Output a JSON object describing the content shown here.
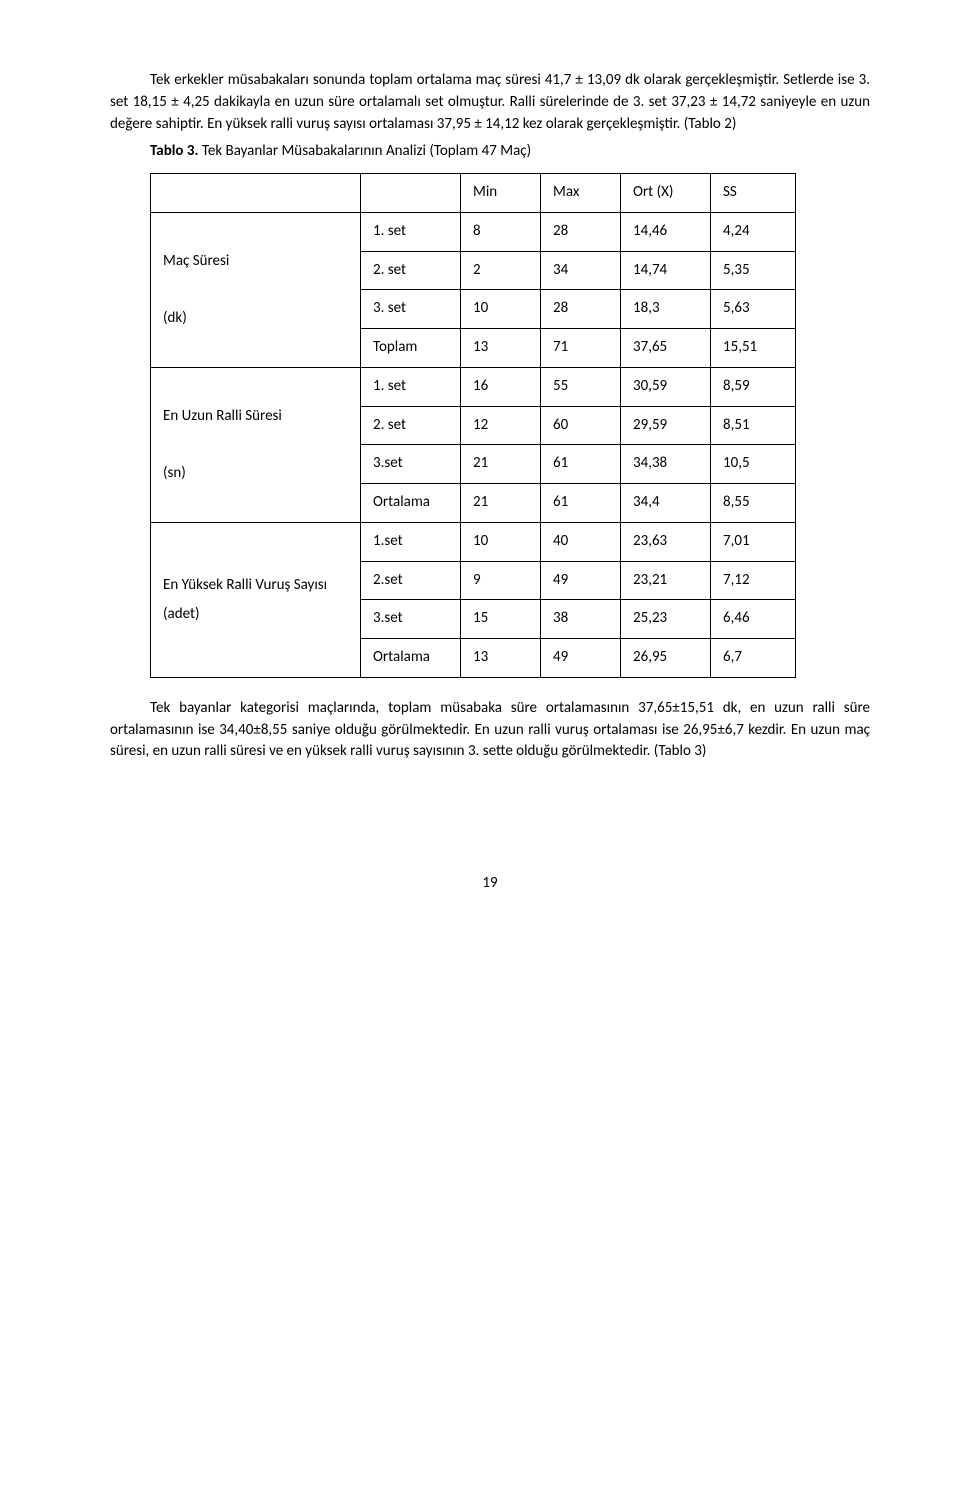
{
  "para1": "Tek erkekler müsabakaları sonunda toplam ortalama maç süresi 41,7 ± 13,09 dk olarak gerçekleşmiştir. Setlerde ise 3. set 18,15 ± 4,25 dakikayla en uzun süre ortalamalı set olmuştur. Ralli sürelerinde de 3. set   37,23 ± 14,72 saniyeyle en uzun değere sahiptir. En yüksek  ralli vuruş sayısı ortalaması 37,95 ± 14,12 kez olarak gerçekleşmiştir. (Tablo 2)",
  "caption_bold": "Tablo 3.",
  "caption_rest": " Tek Bayanlar Müsabakalarının Analizi (Toplam 47 Maç)",
  "headers": {
    "h1": "Min",
    "h2": "Max",
    "h3": "Ort (X)",
    "h4": "SS"
  },
  "groups": [
    {
      "label": "Maç Süresi\n(dk)",
      "rows": [
        {
          "c1": "1. set",
          "c2": "8",
          "c3": "28",
          "c4": "14,46",
          "c5": "4,24"
        },
        {
          "c1": "2. set",
          "c2": "2",
          "c3": "34",
          "c4": "14,74",
          "c5": "5,35"
        },
        {
          "c1": "3. set",
          "c2": "10",
          "c3": "28",
          "c4": "18,3",
          "c5": "5,63"
        },
        {
          "c1": "Toplam",
          "c2": "13",
          "c3": "71",
          "c4": "37,65",
          "c5": "15,51"
        }
      ]
    },
    {
      "label": "En Uzun Ralli Süresi\n(sn)",
      "rows": [
        {
          "c1": "1. set",
          "c2": "16",
          "c3": "55",
          "c4": "30,59",
          "c5": "8,59"
        },
        {
          "c1": "2. set",
          "c2": "12",
          "c3": "60",
          "c4": "29,59",
          "c5": "8,51"
        },
        {
          "c1": "3.set",
          "c2": "21",
          "c3": "61",
          "c4": "34,38",
          "c5": "10,5"
        },
        {
          "c1": "Ortalama",
          "c2": "21",
          "c3": "61",
          "c4": "34,4",
          "c5": "8,55"
        }
      ]
    },
    {
      "label": "En Yüksek Ralli Vuruş Sayısı (adet)",
      "rows": [
        {
          "c1": "1.set",
          "c2": "10",
          "c3": "40",
          "c4": "23,63",
          "c5": "7,01"
        },
        {
          "c1": "2.set",
          "c2": "9",
          "c3": "49",
          "c4": "23,21",
          "c5": "7,12"
        },
        {
          "c1": "3.set",
          "c2": "15",
          "c3": "38",
          "c4": "25,23",
          "c5": "6,46"
        },
        {
          "c1": "Ortalama",
          "c2": "13",
          "c3": "49",
          "c4": "26,95",
          "c5": "6,7"
        }
      ]
    }
  ],
  "para2": "Tek bayanlar kategorisi maçlarında, toplam müsabaka süre ortalamasının 37,65±15,51 dk, en uzun ralli süre ortalamasının ise 34,40±8,55 saniye olduğu görülmektedir. En uzun ralli vuruş ortalaması ise  26,95±6,7 kezdir. En uzun maç süresi, en uzun ralli süresi ve en yüksek ralli vuruş sayısının 3. sette olduğu görülmektedir. (Tablo 3)",
  "page_number": "19"
}
